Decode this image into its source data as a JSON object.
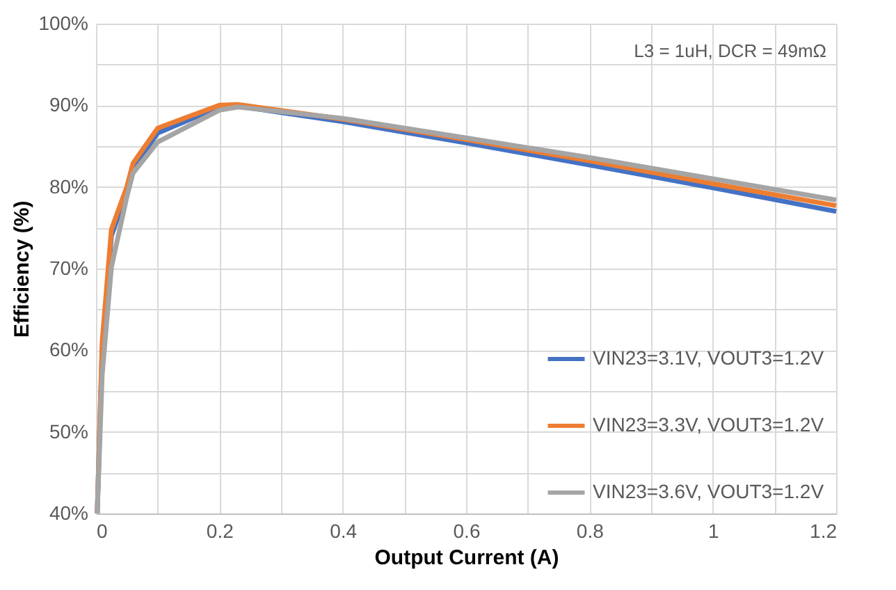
{
  "chart_data": {
    "type": "line",
    "xlabel": "Output Current (A)",
    "ylabel": "Efficiency (%)",
    "annotations": [
      "L3 = 1uH, DCR = 49mΩ"
    ],
    "x": [
      0.002,
      0.01,
      0.025,
      0.05,
      0.06,
      0.1,
      0.2,
      0.23,
      0.4,
      0.6,
      0.8,
      1.0,
      1.2
    ],
    "series": [
      {
        "name": "VIN23=3.1V, VOUT3=1.2V",
        "color": "#4472c4",
        "values": [
          40,
          60,
          74,
          79.5,
          82.3,
          86.6,
          89.8,
          89.9,
          88.0,
          85.4,
          82.7,
          79.9,
          77.0
        ]
      },
      {
        "name": "VIN23=3.3V, VOUT3=1.2V",
        "color": "#ed7d31",
        "values": [
          40,
          61,
          74.8,
          80,
          82.9,
          87.2,
          90.0,
          90.1,
          88.3,
          85.8,
          83.2,
          80.4,
          77.7
        ]
      },
      {
        "name": "VIN23=3.6V, VOUT3=1.2V",
        "color": "#a5a5a5",
        "values": [
          40,
          57,
          70.2,
          78.8,
          81.7,
          85.5,
          89.4,
          89.8,
          88.4,
          86.0,
          83.6,
          81.0,
          78.4
        ]
      }
    ],
    "xlim": [
      0,
      1.2
    ],
    "xticks": [
      0,
      {
        "value": 0.1,
        "label": null
      },
      0.2,
      {
        "value": 0.3,
        "label": null
      },
      0.4,
      {
        "value": 0.5,
        "label": null
      },
      0.6,
      {
        "value": 0.7,
        "label": null
      },
      0.8,
      {
        "value": 0.9,
        "label": null
      },
      1,
      {
        "value": 1.1,
        "label": null
      },
      1.2
    ],
    "ylim": [
      40,
      100
    ],
    "yticks": [
      {
        "value": 40,
        "label": "40%"
      },
      {
        "value": 45,
        "label": null
      },
      {
        "value": 50,
        "label": "50%"
      },
      {
        "value": 55,
        "label": null
      },
      {
        "value": 60,
        "label": "60%"
      },
      {
        "value": 65,
        "label": null
      },
      {
        "value": 70,
        "label": "70%"
      },
      {
        "value": 75,
        "label": null
      },
      {
        "value": 80,
        "label": "80%"
      },
      {
        "value": 85,
        "label": null
      },
      {
        "value": 90,
        "label": "90%"
      },
      {
        "value": 95,
        "label": null
      },
      {
        "value": 100,
        "label": "100%"
      }
    ],
    "grid": true,
    "legend": "bottom right",
    "marker": "none",
    "line_style": "solid"
  }
}
